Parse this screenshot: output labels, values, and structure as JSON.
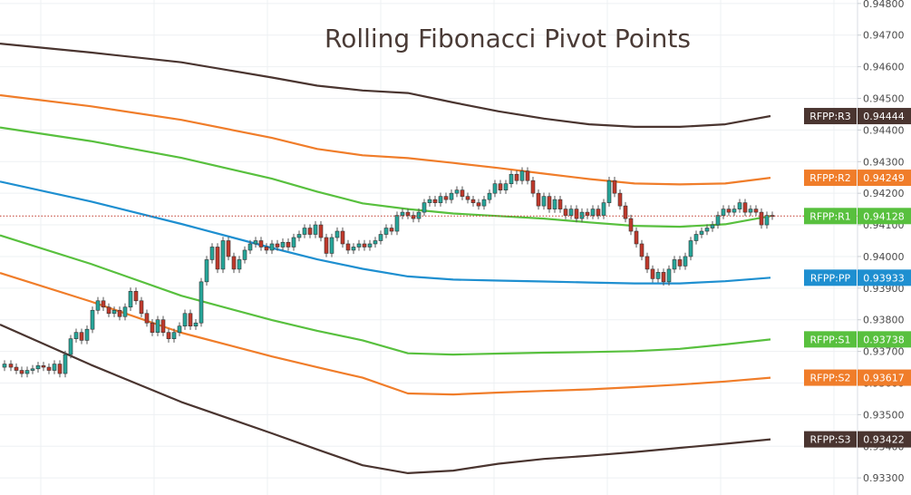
{
  "chart_data": {
    "type": "line",
    "title": "Rolling Fibonacci Pivot Points",
    "xlabel": "",
    "ylabel": "",
    "ylim": [
      0.93246,
      0.94811
    ],
    "grid": true,
    "price_axis_ticks": [
      "0.94800",
      "0.94700",
      "0.94600",
      "0.94500",
      "0.94400",
      "0.94300",
      "0.94200",
      "0.94100",
      "0.94000",
      "0.93900",
      "0.93800",
      "0.93700",
      "0.93600",
      "0.93500",
      "0.93400",
      "0.93300"
    ],
    "last_price": 0.94128,
    "levels": [
      {
        "name": "RFPP:R3",
        "value": "0.94444",
        "color": "#4a3530"
      },
      {
        "name": "RFPP:R2",
        "value": "0.94249",
        "color": "#f07d2a"
      },
      {
        "name": "RFPP:R1",
        "value": "0.94128",
        "color": "#58c03e"
      },
      {
        "name": "RFPP:PP",
        "value": "0.93933",
        "color": "#1e8fd0"
      },
      {
        "name": "RFPP:S1",
        "value": "0.93738",
        "color": "#58c03e"
      },
      {
        "name": "RFPP:S2",
        "value": "0.93617",
        "color": "#f07d2a"
      },
      {
        "name": "RFPP:S3",
        "value": "0.93422",
        "color": "#4a3530"
      }
    ],
    "series": [
      {
        "level": "R3",
        "color": "#4a3530",
        "x": [
          0,
          100,
          200,
          300,
          350,
          400,
          450,
          500,
          550,
          600,
          650,
          700,
          750,
          800,
          850
        ],
        "y": [
          0.94673,
          0.94645,
          0.94614,
          0.94566,
          0.9454,
          0.94525,
          0.94517,
          0.94487,
          0.94459,
          0.94436,
          0.94418,
          0.9441,
          0.9441,
          0.94418,
          0.94444
        ]
      },
      {
        "level": "R2",
        "color": "#f07d2a",
        "x": [
          0,
          100,
          200,
          300,
          350,
          400,
          450,
          500,
          550,
          600,
          650,
          700,
          750,
          800,
          850
        ],
        "y": [
          0.9451,
          0.94475,
          0.94432,
          0.94375,
          0.9434,
          0.9432,
          0.94311,
          0.94296,
          0.9428,
          0.94262,
          0.94245,
          0.94231,
          0.94228,
          0.94231,
          0.94249
        ]
      },
      {
        "level": "R1",
        "color": "#58c03e",
        "x": [
          0,
          100,
          200,
          300,
          350,
          400,
          450,
          500,
          550,
          600,
          650,
          700,
          750,
          800,
          850
        ],
        "y": [
          0.94408,
          0.94365,
          0.94312,
          0.94246,
          0.94205,
          0.94168,
          0.9415,
          0.94136,
          0.94128,
          0.9412,
          0.94108,
          0.94097,
          0.94094,
          0.94102,
          0.94128
        ]
      },
      {
        "level": "PP",
        "color": "#1e8fd0",
        "x": [
          0,
          100,
          200,
          300,
          350,
          400,
          450,
          500,
          550,
          600,
          650,
          700,
          750,
          800,
          850
        ],
        "y": [
          0.94237,
          0.94174,
          0.94103,
          0.94027,
          0.93991,
          0.93961,
          0.93937,
          0.93927,
          0.93924,
          0.93921,
          0.93918,
          0.93915,
          0.93915,
          0.93922,
          0.93933
        ]
      },
      {
        "level": "S1",
        "color": "#58c03e",
        "x": [
          0,
          100,
          200,
          300,
          350,
          400,
          450,
          500,
          550,
          600,
          650,
          700,
          750,
          800,
          850
        ],
        "y": [
          0.94067,
          0.93977,
          0.93876,
          0.93799,
          0.93765,
          0.93735,
          0.93694,
          0.9369,
          0.93693,
          0.93696,
          0.93698,
          0.93701,
          0.93708,
          0.93722,
          0.93738
        ]
      },
      {
        "level": "S2",
        "color": "#f07d2a",
        "x": [
          0,
          100,
          200,
          300,
          350,
          400,
          450,
          500,
          550,
          600,
          650,
          700,
          750,
          800,
          850
        ],
        "y": [
          0.93948,
          0.93858,
          0.93759,
          0.93684,
          0.9365,
          0.93617,
          0.93567,
          0.93564,
          0.9357,
          0.93575,
          0.9358,
          0.93587,
          0.93595,
          0.93605,
          0.93617
        ]
      },
      {
        "level": "S3",
        "color": "#4a3530",
        "x": [
          0,
          100,
          200,
          300,
          350,
          400,
          450,
          500,
          550,
          600,
          650,
          700,
          750,
          800,
          850
        ],
        "y": [
          0.93785,
          0.93658,
          0.9354,
          0.93441,
          0.9339,
          0.9334,
          0.93315,
          0.93323,
          0.93345,
          0.9336,
          0.9337,
          0.93382,
          0.93395,
          0.93408,
          0.93422
        ]
      }
    ],
    "candles": [
      {
        "x": 5,
        "o": 0.9365,
        "c": 0.9366
      },
      {
        "x": 12,
        "o": 0.9366,
        "c": 0.9365
      },
      {
        "x": 18,
        "o": 0.9365,
        "c": 0.9364
      },
      {
        "x": 24,
        "o": 0.9364,
        "c": 0.9363
      },
      {
        "x": 30,
        "o": 0.9363,
        "c": 0.9364
      },
      {
        "x": 36,
        "o": 0.9364,
        "c": 0.93645
      },
      {
        "x": 42,
        "o": 0.93645,
        "c": 0.93655
      },
      {
        "x": 48,
        "o": 0.93655,
        "c": 0.9365
      },
      {
        "x": 54,
        "o": 0.9365,
        "c": 0.9364
      },
      {
        "x": 60,
        "o": 0.9364,
        "c": 0.9366
      },
      {
        "x": 66,
        "o": 0.9366,
        "c": 0.9363
      },
      {
        "x": 72,
        "o": 0.9363,
        "c": 0.9369
      },
      {
        "x": 78,
        "o": 0.9369,
        "c": 0.9374
      },
      {
        "x": 84,
        "o": 0.9374,
        "c": 0.9376
      },
      {
        "x": 90,
        "o": 0.9376,
        "c": 0.93735
      },
      {
        "x": 96,
        "o": 0.93735,
        "c": 0.9377
      },
      {
        "x": 102,
        "o": 0.9377,
        "c": 0.9383
      },
      {
        "x": 108,
        "o": 0.9383,
        "c": 0.9386
      },
      {
        "x": 114,
        "o": 0.9386,
        "c": 0.9384
      },
      {
        "x": 120,
        "o": 0.9384,
        "c": 0.9382
      },
      {
        "x": 126,
        "o": 0.9382,
        "c": 0.9383
      },
      {
        "x": 132,
        "o": 0.9383,
        "c": 0.9381
      },
      {
        "x": 138,
        "o": 0.9381,
        "c": 0.9384
      },
      {
        "x": 144,
        "o": 0.9384,
        "c": 0.9389
      },
      {
        "x": 150,
        "o": 0.9389,
        "c": 0.9386
      },
      {
        "x": 156,
        "o": 0.9386,
        "c": 0.9382
      },
      {
        "x": 162,
        "o": 0.9382,
        "c": 0.9379
      },
      {
        "x": 168,
        "o": 0.9379,
        "c": 0.9376
      },
      {
        "x": 174,
        "o": 0.9376,
        "c": 0.938
      },
      {
        "x": 180,
        "o": 0.938,
        "c": 0.9376
      },
      {
        "x": 186,
        "o": 0.9376,
        "c": 0.9374
      },
      {
        "x": 192,
        "o": 0.9374,
        "c": 0.9376
      },
      {
        "x": 198,
        "o": 0.9376,
        "c": 0.9378
      },
      {
        "x": 204,
        "o": 0.9378,
        "c": 0.9382
      },
      {
        "x": 210,
        "o": 0.9382,
        "c": 0.9378
      },
      {
        "x": 216,
        "o": 0.9378,
        "c": 0.9379
      },
      {
        "x": 222,
        "o": 0.9379,
        "c": 0.9392
      },
      {
        "x": 228,
        "o": 0.9392,
        "c": 0.9399
      },
      {
        "x": 234,
        "o": 0.9399,
        "c": 0.9403
      },
      {
        "x": 240,
        "o": 0.9403,
        "c": 0.9396
      },
      {
        "x": 246,
        "o": 0.9396,
        "c": 0.9405
      },
      {
        "x": 252,
        "o": 0.9405,
        "c": 0.94
      },
      {
        "x": 258,
        "o": 0.94,
        "c": 0.9396
      },
      {
        "x": 264,
        "o": 0.9396,
        "c": 0.9399
      },
      {
        "x": 270,
        "o": 0.9399,
        "c": 0.9402
      },
      {
        "x": 276,
        "o": 0.9402,
        "c": 0.9404
      },
      {
        "x": 282,
        "o": 0.9404,
        "c": 0.9405
      },
      {
        "x": 288,
        "o": 0.9405,
        "c": 0.9403
      },
      {
        "x": 294,
        "o": 0.9403,
        "c": 0.9402
      },
      {
        "x": 300,
        "o": 0.9402,
        "c": 0.9404
      },
      {
        "x": 306,
        "o": 0.9404,
        "c": 0.9403
      },
      {
        "x": 312,
        "o": 0.9403,
        "c": 0.94045
      },
      {
        "x": 318,
        "o": 0.94045,
        "c": 0.9403
      },
      {
        "x": 324,
        "o": 0.9403,
        "c": 0.9406
      },
      {
        "x": 330,
        "o": 0.9406,
        "c": 0.9407
      },
      {
        "x": 336,
        "o": 0.9407,
        "c": 0.9409
      },
      {
        "x": 342,
        "o": 0.9409,
        "c": 0.9407
      },
      {
        "x": 348,
        "o": 0.9407,
        "c": 0.941
      },
      {
        "x": 354,
        "o": 0.941,
        "c": 0.9406
      },
      {
        "x": 360,
        "o": 0.9406,
        "c": 0.9401
      },
      {
        "x": 366,
        "o": 0.9401,
        "c": 0.9406
      },
      {
        "x": 372,
        "o": 0.9406,
        "c": 0.9408
      },
      {
        "x": 378,
        "o": 0.9408,
        "c": 0.9404
      },
      {
        "x": 384,
        "o": 0.9404,
        "c": 0.9402
      },
      {
        "x": 390,
        "o": 0.9402,
        "c": 0.9403
      },
      {
        "x": 396,
        "o": 0.9403,
        "c": 0.9404
      },
      {
        "x": 402,
        "o": 0.9404,
        "c": 0.9403
      },
      {
        "x": 408,
        "o": 0.9403,
        "c": 0.9404
      },
      {
        "x": 414,
        "o": 0.9404,
        "c": 0.9405
      },
      {
        "x": 420,
        "o": 0.9405,
        "c": 0.9407
      },
      {
        "x": 426,
        "o": 0.9407,
        "c": 0.9409
      },
      {
        "x": 432,
        "o": 0.9409,
        "c": 0.9408
      },
      {
        "x": 438,
        "o": 0.9408,
        "c": 0.9413
      },
      {
        "x": 444,
        "o": 0.9413,
        "c": 0.9414
      },
      {
        "x": 450,
        "o": 0.9414,
        "c": 0.9413
      },
      {
        "x": 456,
        "o": 0.9413,
        "c": 0.9412
      },
      {
        "x": 462,
        "o": 0.9412,
        "c": 0.9414
      },
      {
        "x": 468,
        "o": 0.9414,
        "c": 0.9417
      },
      {
        "x": 474,
        "o": 0.9417,
        "c": 0.9418
      },
      {
        "x": 480,
        "o": 0.9418,
        "c": 0.9417
      },
      {
        "x": 486,
        "o": 0.9417,
        "c": 0.9419
      },
      {
        "x": 492,
        "o": 0.9419,
        "c": 0.9418
      },
      {
        "x": 498,
        "o": 0.9418,
        "c": 0.942
      },
      {
        "x": 504,
        "o": 0.942,
        "c": 0.9421
      },
      {
        "x": 510,
        "o": 0.9421,
        "c": 0.9419
      },
      {
        "x": 516,
        "o": 0.9419,
        "c": 0.9418
      },
      {
        "x": 522,
        "o": 0.9418,
        "c": 0.9417
      },
      {
        "x": 528,
        "o": 0.9417,
        "c": 0.9416
      },
      {
        "x": 534,
        "o": 0.9416,
        "c": 0.9418
      },
      {
        "x": 540,
        "o": 0.9418,
        "c": 0.942
      },
      {
        "x": 546,
        "o": 0.942,
        "c": 0.9423
      },
      {
        "x": 552,
        "o": 0.9423,
        "c": 0.9421
      },
      {
        "x": 558,
        "o": 0.9421,
        "c": 0.9423
      },
      {
        "x": 564,
        "o": 0.9423,
        "c": 0.9426
      },
      {
        "x": 570,
        "o": 0.9426,
        "c": 0.9424
      },
      {
        "x": 576,
        "o": 0.9424,
        "c": 0.9427
      },
      {
        "x": 582,
        "o": 0.9427,
        "c": 0.9424
      },
      {
        "x": 588,
        "o": 0.9424,
        "c": 0.942
      },
      {
        "x": 594,
        "o": 0.942,
        "c": 0.9416
      },
      {
        "x": 600,
        "o": 0.9416,
        "c": 0.9419
      },
      {
        "x": 606,
        "o": 0.9419,
        "c": 0.9415
      },
      {
        "x": 612,
        "o": 0.9415,
        "c": 0.9418
      },
      {
        "x": 618,
        "o": 0.9418,
        "c": 0.9415
      },
      {
        "x": 624,
        "o": 0.9415,
        "c": 0.9413
      },
      {
        "x": 630,
        "o": 0.9413,
        "c": 0.9415
      },
      {
        "x": 636,
        "o": 0.9415,
        "c": 0.9412
      },
      {
        "x": 642,
        "o": 0.9412,
        "c": 0.9414
      },
      {
        "x": 648,
        "o": 0.9414,
        "c": 0.9413
      },
      {
        "x": 654,
        "o": 0.9413,
        "c": 0.9415
      },
      {
        "x": 660,
        "o": 0.9415,
        "c": 0.9413
      },
      {
        "x": 666,
        "o": 0.9413,
        "c": 0.9417
      },
      {
        "x": 672,
        "o": 0.9417,
        "c": 0.9424
      },
      {
        "x": 678,
        "o": 0.9424,
        "c": 0.942
      },
      {
        "x": 684,
        "o": 0.942,
        "c": 0.9416
      },
      {
        "x": 690,
        "o": 0.9416,
        "c": 0.9412
      },
      {
        "x": 696,
        "o": 0.9412,
        "c": 0.9408
      },
      {
        "x": 702,
        "o": 0.9408,
        "c": 0.9404
      },
      {
        "x": 708,
        "o": 0.9404,
        "c": 0.94
      },
      {
        "x": 714,
        "o": 0.94,
        "c": 0.9396
      },
      {
        "x": 720,
        "o": 0.9396,
        "c": 0.9393
      },
      {
        "x": 726,
        "o": 0.9393,
        "c": 0.9395
      },
      {
        "x": 732,
        "o": 0.9395,
        "c": 0.9392
      },
      {
        "x": 738,
        "o": 0.9392,
        "c": 0.9396
      },
      {
        "x": 744,
        "o": 0.9396,
        "c": 0.9399
      },
      {
        "x": 750,
        "o": 0.9399,
        "c": 0.9397
      },
      {
        "x": 756,
        "o": 0.9397,
        "c": 0.94
      },
      {
        "x": 762,
        "o": 0.94,
        "c": 0.9405
      },
      {
        "x": 768,
        "o": 0.9405,
        "c": 0.9407
      },
      {
        "x": 774,
        "o": 0.9407,
        "c": 0.9408
      },
      {
        "x": 780,
        "o": 0.9408,
        "c": 0.9409
      },
      {
        "x": 786,
        "o": 0.9409,
        "c": 0.941
      },
      {
        "x": 792,
        "o": 0.941,
        "c": 0.9413
      },
      {
        "x": 798,
        "o": 0.9413,
        "c": 0.9415
      },
      {
        "x": 804,
        "o": 0.9415,
        "c": 0.9414
      },
      {
        "x": 810,
        "o": 0.9414,
        "c": 0.9415
      },
      {
        "x": 816,
        "o": 0.9415,
        "c": 0.9417
      },
      {
        "x": 822,
        "o": 0.9417,
        "c": 0.9414
      },
      {
        "x": 828,
        "o": 0.9414,
        "c": 0.9415
      },
      {
        "x": 834,
        "o": 0.9415,
        "c": 0.9414
      },
      {
        "x": 840,
        "o": 0.9414,
        "c": 0.941
      },
      {
        "x": 846,
        "o": 0.941,
        "c": 0.9413
      },
      {
        "x": 852,
        "o": 0.9413,
        "c": 0.94128
      }
    ]
  }
}
